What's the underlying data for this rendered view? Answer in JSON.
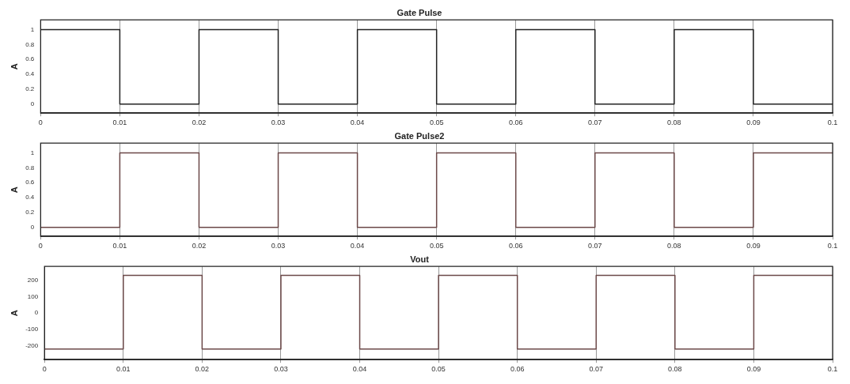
{
  "chart_data": [
    {
      "type": "step",
      "title": "Gate Pulse",
      "ylabel": "A",
      "x": [
        0,
        0.01,
        0.02,
        0.03,
        0.04,
        0.05,
        0.06,
        0.07,
        0.08,
        0.09,
        0.1
      ],
      "series": [
        {
          "color": "#222222",
          "values": [
            1,
            0,
            1,
            0,
            1,
            0,
            1,
            0,
            1,
            0,
            0
          ]
        }
      ],
      "xlim": [
        0,
        0.1
      ],
      "xticks": [
        0,
        0.01,
        0.02,
        0.03,
        0.04,
        0.05,
        0.06,
        0.07,
        0.08,
        0.09,
        0.1
      ],
      "ylim": [
        -0.12,
        1.13
      ],
      "yticks": [
        0,
        0.2,
        0.4,
        0.6,
        0.8,
        1
      ],
      "grid": "x",
      "marker": "none"
    },
    {
      "type": "step",
      "title": "Gate Pulse2",
      "ylabel": "A",
      "x": [
        0,
        0.01,
        0.02,
        0.03,
        0.04,
        0.05,
        0.06,
        0.07,
        0.08,
        0.09,
        0.1
      ],
      "series": [
        {
          "color": "#6b4848",
          "values": [
            0,
            1,
            0,
            1,
            0,
            1,
            0,
            1,
            0,
            1,
            1
          ]
        }
      ],
      "xlim": [
        0,
        0.1
      ],
      "xticks": [
        0,
        0.01,
        0.02,
        0.03,
        0.04,
        0.05,
        0.06,
        0.07,
        0.08,
        0.09,
        0.1
      ],
      "ylim": [
        -0.12,
        1.13
      ],
      "yticks": [
        0,
        0.2,
        0.4,
        0.6,
        0.8,
        1
      ],
      "grid": "x",
      "marker": "none"
    },
    {
      "type": "step",
      "title": "Vout",
      "ylabel": "A",
      "x": [
        0,
        0.01,
        0.02,
        0.03,
        0.04,
        0.05,
        0.06,
        0.07,
        0.08,
        0.09,
        0.1
      ],
      "series": [
        {
          "color": "#6b4848",
          "values": [
            -220,
            230,
            -220,
            230,
            -220,
            230,
            -220,
            230,
            -220,
            230,
            230
          ]
        }
      ],
      "xlim": [
        0,
        0.1
      ],
      "xticks": [
        0,
        0.01,
        0.02,
        0.03,
        0.04,
        0.05,
        0.06,
        0.07,
        0.08,
        0.09,
        0.1
      ],
      "ylim": [
        -285,
        285
      ],
      "yticks": [
        -200,
        -100,
        0,
        100,
        200
      ],
      "grid": "x",
      "marker": "none"
    }
  ]
}
